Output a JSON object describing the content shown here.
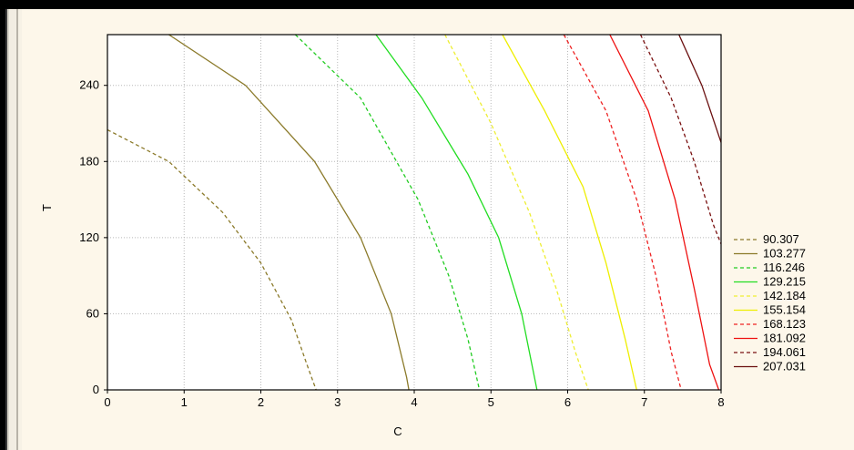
{
  "chart_data": {
    "type": "line",
    "subtype": "contour",
    "title": "",
    "xlabel": "C",
    "ylabel": "T",
    "xlim": [
      0,
      8
    ],
    "ylim": [
      0,
      280
    ],
    "x_ticks": [
      "0",
      "1",
      "2",
      "3",
      "4",
      "5",
      "6",
      "7",
      "8"
    ],
    "y_ticks": [
      "0",
      "60",
      "120",
      "180",
      "240"
    ],
    "grid": true,
    "legend_position": "right",
    "series": [
      {
        "name": "90.307",
        "color": "#8b7a2a",
        "dash": "dashed",
        "points": [
          [
            0,
            205
          ],
          [
            0.8,
            180
          ],
          [
            1.5,
            140
          ],
          [
            2,
            100
          ],
          [
            2.4,
            55
          ],
          [
            2.6,
            20
          ],
          [
            2.72,
            0
          ]
        ]
      },
      {
        "name": "103.277",
        "color": "#8b7a2a",
        "dash": "solid",
        "points": [
          [
            0.8,
            280
          ],
          [
            1.8,
            240
          ],
          [
            2.7,
            180
          ],
          [
            3.3,
            120
          ],
          [
            3.7,
            60
          ],
          [
            3.9,
            10
          ],
          [
            3.93,
            0
          ]
        ]
      },
      {
        "name": "116.246",
        "color": "#22cc22",
        "dash": "dashed",
        "points": [
          [
            2.45,
            280
          ],
          [
            3.3,
            230
          ],
          [
            4.05,
            150
          ],
          [
            4.45,
            90
          ],
          [
            4.7,
            40
          ],
          [
            4.85,
            0
          ]
        ]
      },
      {
        "name": "129.215",
        "color": "#22dd22",
        "dash": "solid",
        "points": [
          [
            3.5,
            280
          ],
          [
            4.1,
            230
          ],
          [
            4.7,
            170
          ],
          [
            5.1,
            120
          ],
          [
            5.4,
            60
          ],
          [
            5.6,
            0
          ]
        ]
      },
      {
        "name": "142.184",
        "color": "#eeee33",
        "dash": "dashed",
        "points": [
          [
            4.4,
            280
          ],
          [
            5,
            210
          ],
          [
            5.5,
            140
          ],
          [
            5.85,
            80
          ],
          [
            6.1,
            30
          ],
          [
            6.27,
            0
          ]
        ]
      },
      {
        "name": "155.154",
        "color": "#eeee00",
        "dash": "solid",
        "points": [
          [
            5.15,
            280
          ],
          [
            5.7,
            220
          ],
          [
            6.2,
            160
          ],
          [
            6.5,
            100
          ],
          [
            6.75,
            40
          ],
          [
            6.9,
            0
          ]
        ]
      },
      {
        "name": "168.123",
        "color": "#ee2222",
        "dash": "dashed",
        "points": [
          [
            5.95,
            280
          ],
          [
            6.5,
            220
          ],
          [
            6.9,
            150
          ],
          [
            7.15,
            90
          ],
          [
            7.35,
            30
          ],
          [
            7.48,
            0
          ]
        ]
      },
      {
        "name": "181.092",
        "color": "#ee1111",
        "dash": "solid",
        "points": [
          [
            6.55,
            280
          ],
          [
            7.05,
            220
          ],
          [
            7.4,
            150
          ],
          [
            7.65,
            80
          ],
          [
            7.85,
            20
          ],
          [
            7.97,
            0
          ]
        ]
      },
      {
        "name": "194.061",
        "color": "#7a1010",
        "dash": "dashed",
        "points": [
          [
            6.95,
            280
          ],
          [
            7.35,
            230
          ],
          [
            7.65,
            180
          ],
          [
            7.9,
            130
          ],
          [
            8,
            115
          ]
        ]
      },
      {
        "name": "207.031",
        "color": "#6b1010",
        "dash": "solid",
        "points": [
          [
            7.45,
            280
          ],
          [
            7.75,
            240
          ],
          [
            8,
            195
          ]
        ]
      }
    ]
  }
}
